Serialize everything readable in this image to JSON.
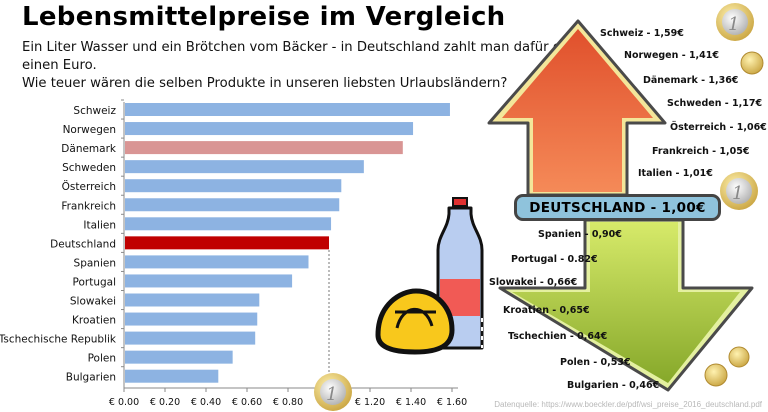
{
  "title": "Lebensmittelpreise im Vergleich",
  "subtitle_lines": [
    "Ein Liter Wasser und ein Brötchen vom Bäcker - in Deutschland  zahlt man dafür etwa",
    "einen Euro.",
    "Wie teuer wären die selben Produkte in unseren liebsten Urlaubsländern?"
  ],
  "colors": {
    "bar_default": "#8db3e2",
    "bar_highlight_denmark": "#d99594",
    "bar_germany": "#c00000",
    "arrow_up": "#ee6a3c",
    "arrow_down": "#a8c83a",
    "germany_box": "#8fc3dc"
  },
  "chart_data": {
    "type": "bar",
    "orientation": "horizontal",
    "title": "",
    "xlabel": "",
    "ylabel": "",
    "categories": [
      "Schweiz",
      "Norwegen",
      "Dänemark",
      "Schweden",
      "Österreich",
      "Frankreich",
      "Italien",
      "Deutschland",
      "Spanien",
      "Portugal",
      "Slowakei",
      "Kroatien",
      "Tschechische Republik",
      "Polen",
      "Bulgarien"
    ],
    "values": [
      1.59,
      1.41,
      1.36,
      1.17,
      1.06,
      1.05,
      1.01,
      1.0,
      0.9,
      0.82,
      0.66,
      0.65,
      0.64,
      0.53,
      0.46
    ],
    "highlight": {
      "Dänemark": "bar_highlight_denmark",
      "Deutschland": "bar_germany"
    },
    "xlim": [
      0,
      1.6
    ],
    "x_ticks": [
      0,
      0.2,
      0.4,
      0.6,
      0.8,
      1.0,
      1.2,
      1.4,
      1.6
    ],
    "x_tick_labels": [
      "€ 0.00",
      "€ 0.20",
      "€ 0.40",
      "€ 0.60",
      "€ 0.80",
      "€ 1.00",
      "€ 1.20",
      "€ 1.40",
      "€ 1.60"
    ],
    "reference_line": 1.0,
    "grid": false,
    "legend": "none"
  },
  "infographic": {
    "up_labels": [
      "Schweiz - 1,59€",
      "Norwegen - 1,41€",
      "Dänemark - 1,36€",
      "Schweden - 1,17€",
      "Österreich - 1,06€",
      "Frankreich - 1,05€",
      "Italien - 1,01€"
    ],
    "center_label": "DEUTSCHLAND - 1,00€",
    "down_labels": [
      "Spanien - 0,90€",
      "Portugal - 0.82€",
      "Slowakei - 0,66€",
      "Kroatien - 0,65€",
      "Tschechien - 0,64€",
      "Polen - 0,53€",
      "Bulgarien - 0,46€"
    ]
  },
  "icons": {
    "coin": "euro-coin-icon",
    "cent": "cent-coin-icon",
    "bottle": "water-bottle-icon",
    "bread": "bread-roll-icon"
  },
  "source": "Datenquelle: https://www.boeckler.de/pdf/wsi_preise_2016_deutschland.pdf"
}
